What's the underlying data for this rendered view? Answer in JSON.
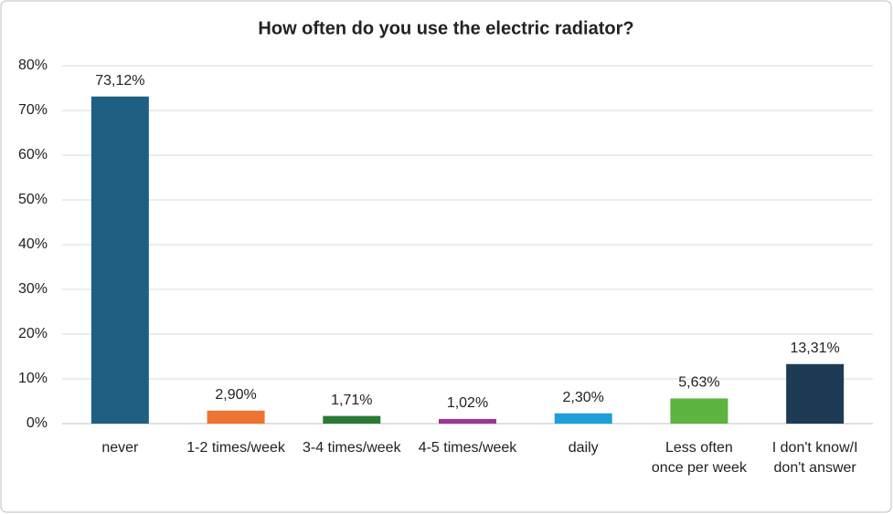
{
  "chart_data": {
    "type": "bar",
    "title": "How often do you use the electric radiator?",
    "categories": [
      "never",
      "1-2 times/week",
      "3-4 times/week",
      "4-5 times/week",
      "daily",
      "Less often once per week",
      "I don't know/I don't answer"
    ],
    "values": [
      73.12,
      2.9,
      1.71,
      1.02,
      2.3,
      5.63,
      13.31
    ],
    "value_labels": [
      "73,12%",
      "2,90%",
      "1,71%",
      "1,02%",
      "2,30%",
      "5,63%",
      "13,31%"
    ],
    "colors": [
      "#1f5f82",
      "#ee7430",
      "#2b7a34",
      "#a3319a",
      "#1f9fd8",
      "#5cb540",
      "#1d3b54"
    ],
    "ylim": [
      0,
      80
    ],
    "yticks": [
      {
        "value": 0,
        "label": "0%"
      },
      {
        "value": 10,
        "label": "10%"
      },
      {
        "value": 20,
        "label": "20%"
      },
      {
        "value": 30,
        "label": "30%"
      },
      {
        "value": 40,
        "label": "40%"
      },
      {
        "value": 50,
        "label": "50%"
      },
      {
        "value": 60,
        "label": "60%"
      },
      {
        "value": 70,
        "label": "70%"
      },
      {
        "value": 80,
        "label": "80%"
      }
    ],
    "grid": true
  }
}
